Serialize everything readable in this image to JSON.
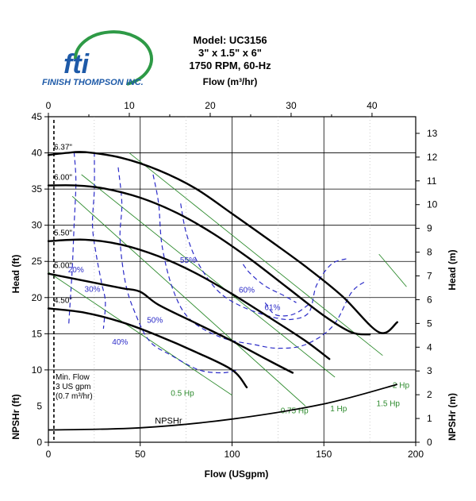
{
  "logo": {
    "mark": "fti",
    "company_name": "FINISH THOMPSON INC."
  },
  "title_lines": [
    "Model: UC3156",
    "3\" x 1.5\" x 6\"",
    "1750 RPM, 60-Hz"
  ],
  "colors": {
    "head_curve": "#000000",
    "efficiency": "#2b2bc8",
    "power": "#2e8b2e",
    "grid": "#000000",
    "logo_blue": "#1e5aa8",
    "logo_green": "#2e9a46"
  },
  "chart_data": {
    "type": "line",
    "top_axis": {
      "label": "Flow (m³/hr)",
      "ticks": [
        0,
        10,
        20,
        30,
        40
      ],
      "range": [
        0,
        45.4
      ]
    },
    "bottom_axis": {
      "label": "Flow (USgpm)",
      "ticks": [
        0,
        50,
        100,
        150,
        200
      ],
      "range": [
        0,
        200
      ]
    },
    "left_axis": {
      "label": "Head (ft)",
      "ticks": [
        10,
        15,
        20,
        25,
        30,
        35,
        40,
        45
      ],
      "range": [
        0,
        45
      ]
    },
    "right_axis": {
      "label": "Head (m)",
      "ticks": [
        3,
        4,
        5,
        6,
        7,
        8,
        9,
        10,
        11,
        12,
        13
      ],
      "range": [
        0,
        13.7
      ]
    },
    "npsh_left_axis": {
      "label": "NPSHr (ft)",
      "ticks": [
        0,
        5
      ]
    },
    "npsh_right_axis": {
      "label": "NPSHr (m)",
      "ticks": [
        0,
        1,
        2
      ]
    },
    "grid": true,
    "impeller_curves": [
      {
        "name": "6.37\"",
        "points": [
          [
            0,
            39.7
          ],
          [
            10,
            40.0
          ],
          [
            20,
            40.1
          ],
          [
            40,
            39.3
          ],
          [
            60,
            37.6
          ],
          [
            80,
            35.1
          ],
          [
            100,
            31.6
          ],
          [
            120,
            28.0
          ],
          [
            140,
            24.3
          ],
          [
            160,
            20.2
          ],
          [
            180,
            15.2
          ],
          [
            190,
            16.6
          ]
        ]
      },
      {
        "name": "6.00\"",
        "points": [
          [
            0,
            35.5
          ],
          [
            15,
            35.5
          ],
          [
            30,
            35.1
          ],
          [
            50,
            33.8
          ],
          [
            70,
            31.7
          ],
          [
            90,
            28.8
          ],
          [
            110,
            25.3
          ],
          [
            130,
            21.4
          ],
          [
            150,
            17.5
          ],
          [
            165,
            15.2
          ],
          [
            175,
            14.9
          ]
        ]
      },
      {
        "name": "5.50\"",
        "points": [
          [
            0,
            27.8
          ],
          [
            20,
            28.0
          ],
          [
            40,
            27.3
          ],
          [
            60,
            25.7
          ],
          [
            80,
            23.4
          ],
          [
            100,
            20.5
          ],
          [
            120,
            17.3
          ],
          [
            140,
            14.0
          ],
          [
            153,
            11.5
          ]
        ]
      },
      {
        "name": "5.00\"",
        "points": [
          [
            0,
            23.3
          ],
          [
            20,
            22.3
          ],
          [
            40,
            21.3
          ],
          [
            50,
            20.8
          ],
          [
            60,
            19.0
          ],
          [
            80,
            16.5
          ],
          [
            100,
            14.0
          ],
          [
            120,
            11.3
          ],
          [
            133,
            9.6
          ]
        ]
      },
      {
        "name": "4.50\"",
        "points": [
          [
            0,
            18.5
          ],
          [
            20,
            17.9
          ],
          [
            40,
            16.6
          ],
          [
            60,
            14.7
          ],
          [
            80,
            12.5
          ],
          [
            100,
            10.0
          ],
          [
            108,
            7.6
          ]
        ]
      }
    ],
    "efficiency_curves": [
      {
        "name": "20%",
        "label_at": [
          15,
          23.5
        ],
        "points": [
          [
            14,
            40.1
          ],
          [
            15,
            36
          ],
          [
            14,
            30
          ],
          [
            13,
            24
          ],
          [
            12,
            20
          ],
          [
            11,
            16
          ]
        ]
      },
      {
        "name": "30%",
        "label_at": [
          24,
          20.8
        ],
        "points": [
          [
            25,
            40.1
          ],
          [
            25,
            35
          ],
          [
            24,
            30
          ],
          [
            26,
            26
          ],
          [
            29,
            22
          ],
          [
            31,
            19.4
          ],
          [
            30,
            15.7
          ]
        ]
      },
      {
        "name": "40%",
        "label_at": [
          39,
          13.5
        ],
        "points": [
          [
            38,
            38
          ],
          [
            40,
            33
          ],
          [
            39,
            28
          ],
          [
            42,
            22
          ],
          [
            47,
            18
          ],
          [
            55,
            14
          ],
          [
            67,
            12
          ],
          [
            82,
            10
          ],
          [
            95,
            9.6
          ],
          [
            103,
            10
          ]
        ]
      },
      {
        "name": "50%",
        "label_at": [
          58,
          16.5
        ],
        "points": [
          [
            57,
            37
          ],
          [
            60,
            33
          ],
          [
            62,
            27
          ],
          [
            68,
            21
          ],
          [
            77,
            17
          ],
          [
            94,
            14.5
          ],
          [
            112,
            13.5
          ],
          [
            125,
            13
          ],
          [
            140,
            13.5
          ],
          [
            155,
            16.1
          ],
          [
            165,
            20.7
          ],
          [
            173,
            22.3
          ]
        ]
      },
      {
        "name": "55%",
        "label_at": [
          76,
          24.8
        ],
        "points": [
          [
            72,
            33
          ],
          [
            75,
            29
          ],
          [
            81,
            25
          ],
          [
            92,
            21
          ],
          [
            105,
            18.8
          ],
          [
            122,
            17.3
          ],
          [
            133,
            17.0
          ],
          [
            142,
            18.0
          ],
          [
            146,
            21.7
          ],
          [
            154,
            24.6
          ],
          [
            163,
            25.4
          ]
        ]
      },
      {
        "name": "60%",
        "label_at": [
          108,
          20.7
        ],
        "points": [
          [
            106,
            24.6
          ],
          [
            110,
            23.3
          ],
          [
            118,
            21.6
          ],
          [
            128,
            20.3
          ],
          [
            135,
            19.3
          ]
        ]
      },
      {
        "name": "61%",
        "label_at": [
          122,
          18.3
        ],
        "points": [
          [
            118,
            19.3
          ],
          [
            123,
            17.7
          ],
          [
            130,
            17.5
          ],
          [
            136,
            18.0
          ],
          [
            143,
            19.3
          ]
        ]
      }
    ],
    "power_lines": [
      {
        "name": "0.5 Hp",
        "label_at": [
          73,
          6.4
        ],
        "points": [
          [
            0,
            23.5
          ],
          [
            100,
            6.5
          ]
        ]
      },
      {
        "name": "0.75 Hp",
        "label_at": [
          134,
          4.0
        ],
        "points": [
          [
            13,
            34
          ],
          [
            140,
            5
          ]
        ]
      },
      {
        "name": "1 Hp",
        "label_at": [
          158,
          4.3
        ],
        "points": [
          [
            18,
            37
          ],
          [
            156,
            9
          ]
        ]
      },
      {
        "name": "1.5 Hp",
        "label_at": [
          185,
          5.0
        ],
        "points": [
          [
            44,
            40
          ],
          [
            182,
            12
          ]
        ]
      },
      {
        "name": "2 Hp",
        "label_at": [
          192,
          7.5
        ],
        "points": [
          [
            180,
            26
          ],
          [
            195,
            21.5
          ]
        ]
      }
    ],
    "npshr": {
      "name": "NPSHr",
      "label_at": [
        58,
        2.6
      ],
      "points": [
        [
          0,
          1.7
        ],
        [
          50,
          2.0
        ],
        [
          100,
          3.2
        ],
        [
          150,
          5.3
        ],
        [
          190,
          8.0
        ]
      ]
    },
    "min_flow": {
      "lines": [
        "Min. Flow",
        "3 US gpm",
        "(0.7 m³/hr)"
      ],
      "x": 3
    }
  }
}
